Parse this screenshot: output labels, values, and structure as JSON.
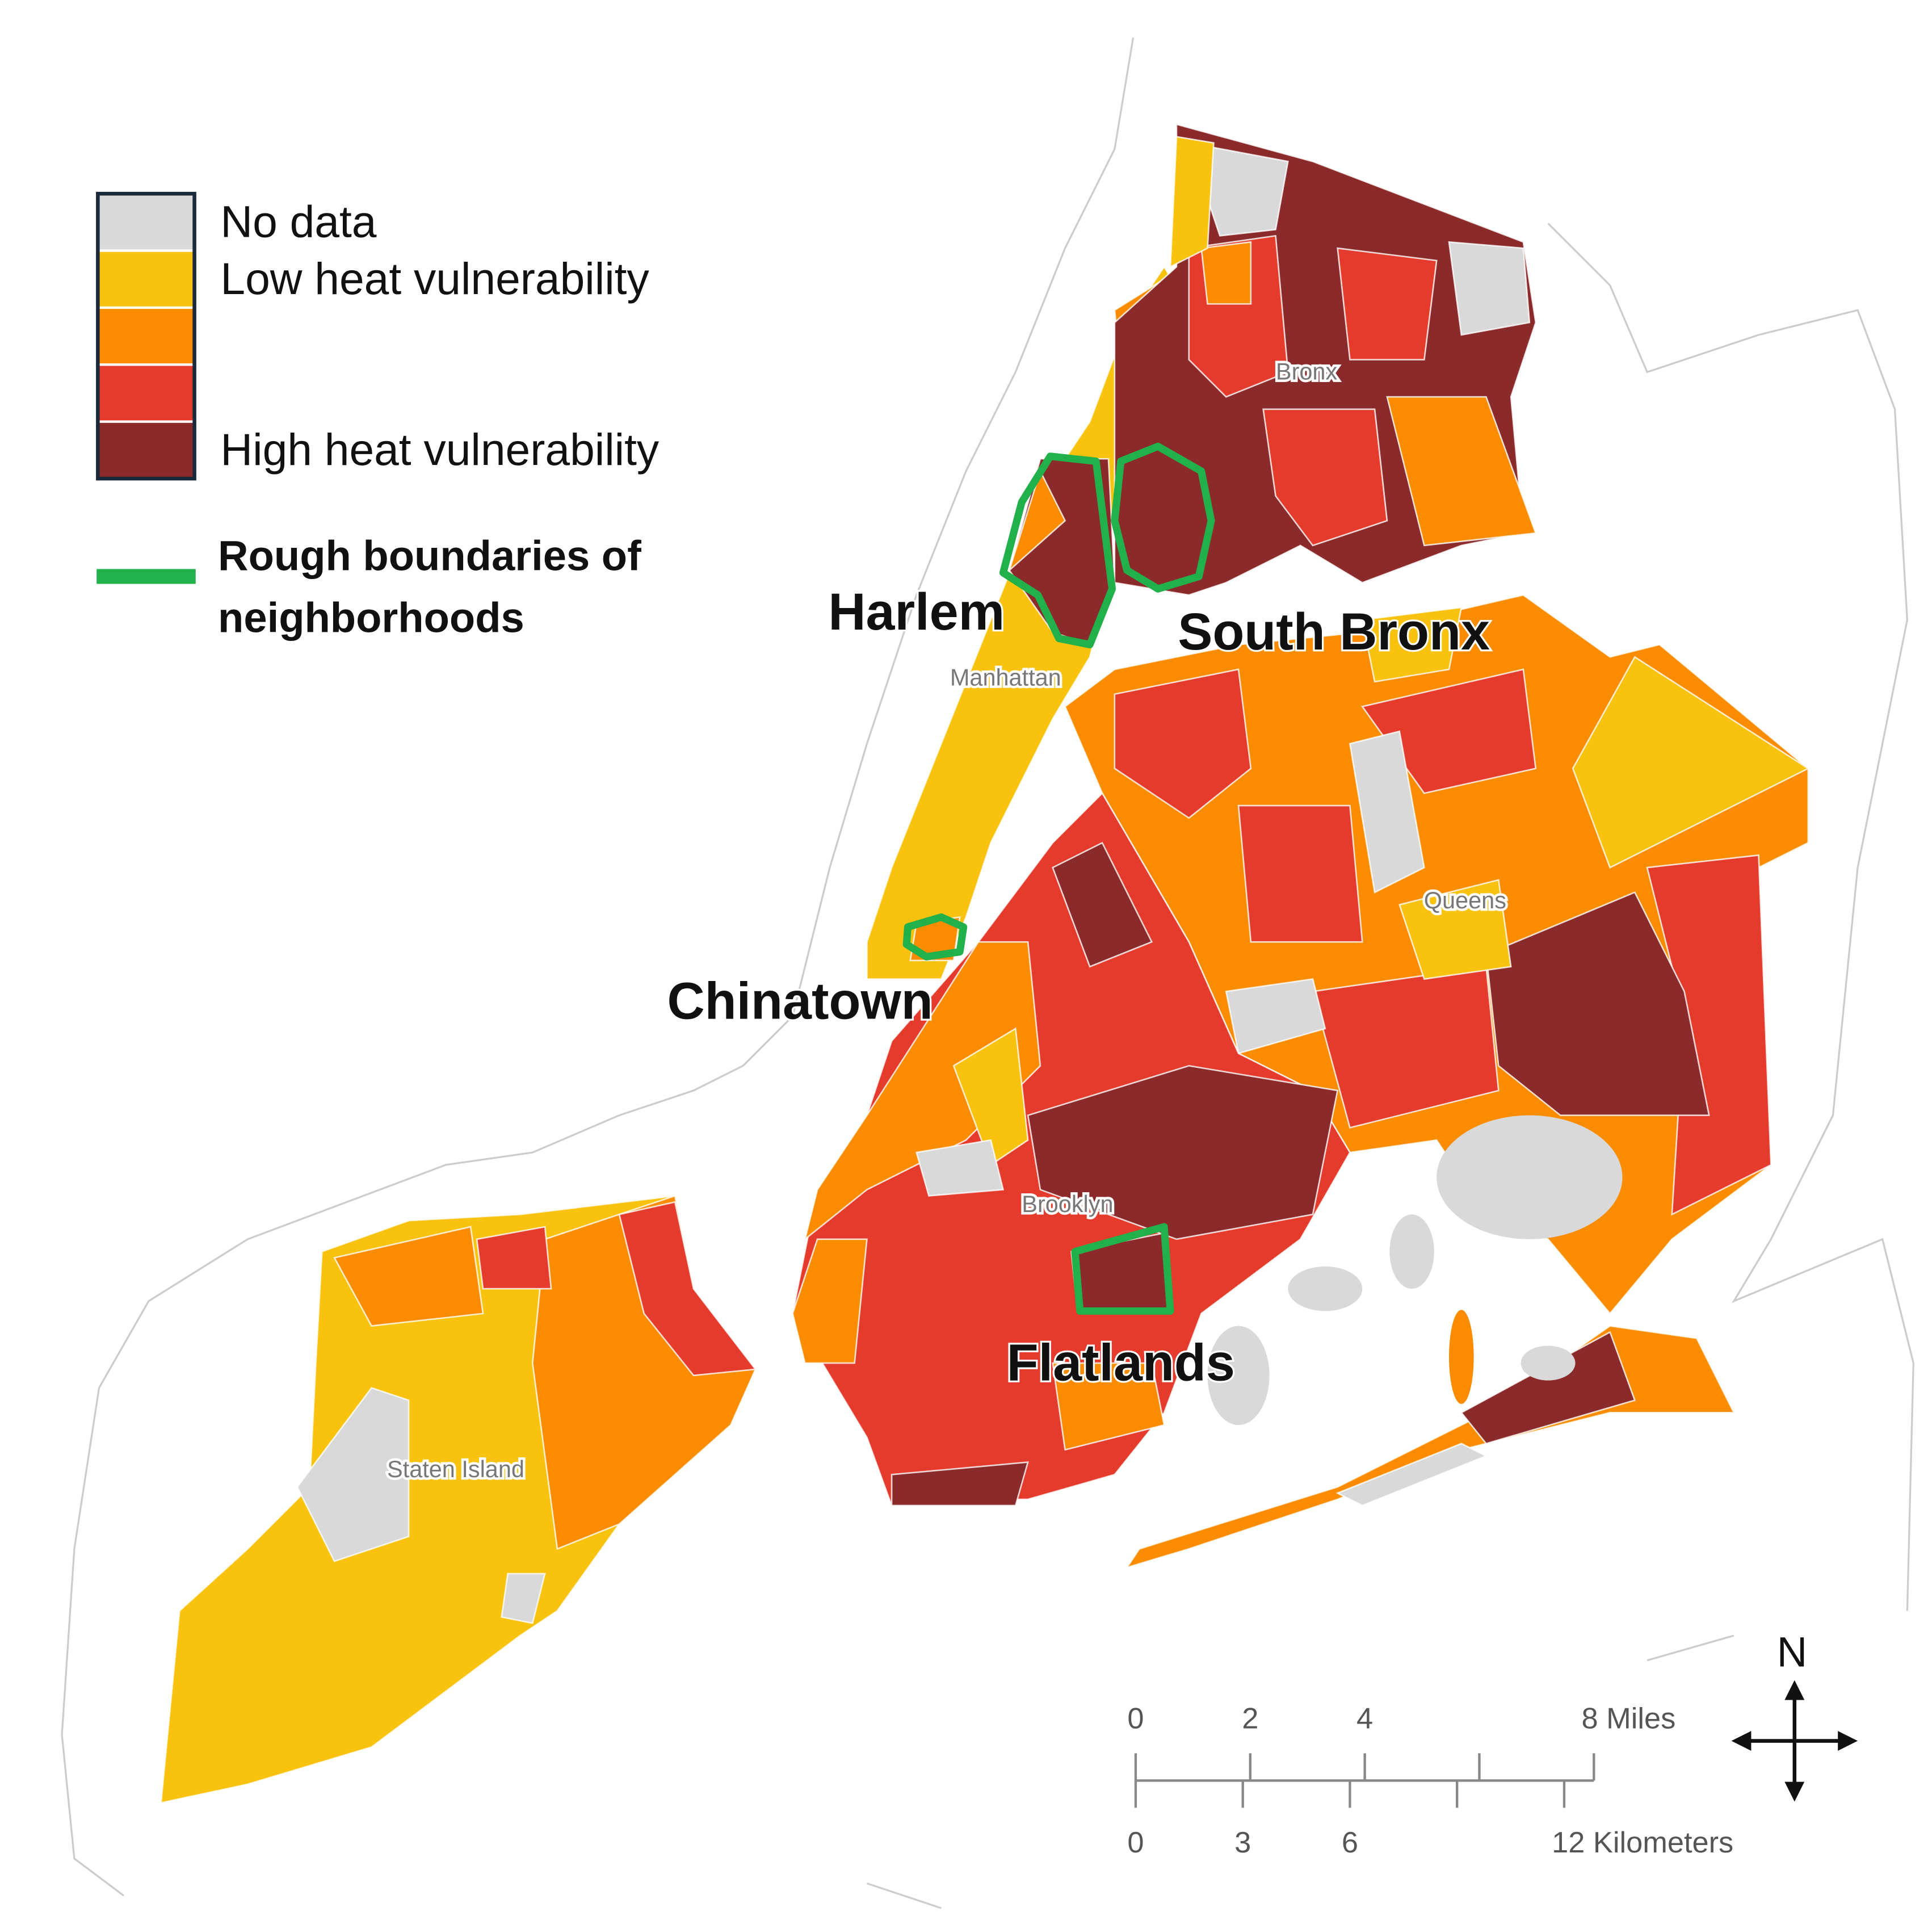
{
  "legend": {
    "items": [
      {
        "label": "No data",
        "color": "#d9d9d9"
      },
      {
        "label": "Low heat vulnerability",
        "color": "#f8c20e"
      },
      {
        "color": "#fb8c00"
      },
      {
        "color": "#e53b2c"
      },
      {
        "label": "High heat vulnerability",
        "color": "#8b2a2a"
      }
    ],
    "boundary": {
      "lines": [
        "Rough boundaries of",
        "neighborhoods"
      ],
      "color": "#22b04a"
    }
  },
  "neighborhoods": [
    "Harlem",
    "South Bronx",
    "Chinatown",
    "Flatlands"
  ],
  "boroughs": [
    "Bronx",
    "Manhattan",
    "Queens",
    "Brooklyn",
    "Staten Island"
  ],
  "scale": {
    "miles": [
      0,
      2,
      4,
      {
        "value": 8,
        "label": "8 Miles"
      }
    ],
    "kilometers": [
      0,
      3,
      6,
      {
        "value": 12,
        "label": "12 Kilometers"
      }
    ]
  },
  "compass": "N"
}
